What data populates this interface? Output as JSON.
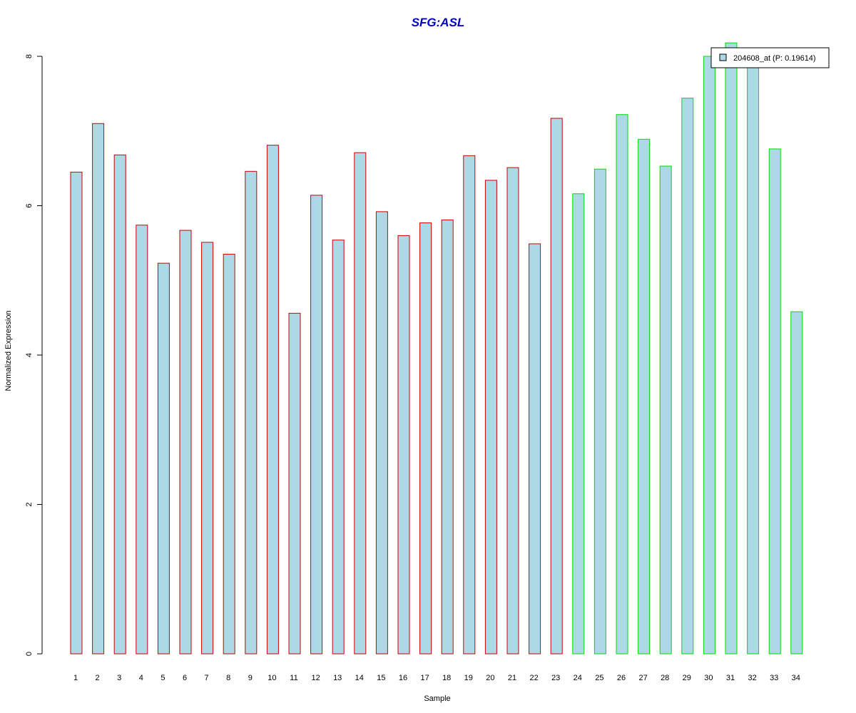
{
  "chart_data": {
    "type": "bar",
    "title": "SFG:ASL",
    "xlabel": "Sample",
    "ylabel": "Normalized Expression",
    "categories": [
      "1",
      "2",
      "3",
      "4",
      "5",
      "6",
      "7",
      "8",
      "9",
      "10",
      "11",
      "12",
      "13",
      "14",
      "15",
      "16",
      "17",
      "18",
      "19",
      "20",
      "21",
      "22",
      "23",
      "24",
      "25",
      "26",
      "27",
      "28",
      "29",
      "30",
      "31",
      "32",
      "33",
      "34"
    ],
    "series": [
      {
        "name": "204608_at (P: 0.19614)",
        "values": [
          6.45,
          7.1,
          6.68,
          5.74,
          5.23,
          5.67,
          5.51,
          5.35,
          6.46,
          6.81,
          4.56,
          6.14,
          5.54,
          6.71,
          5.92,
          5.6,
          5.77,
          5.81,
          6.67,
          6.34,
          6.51,
          5.49,
          7.17,
          6.16,
          6.49,
          7.22,
          6.89,
          6.53,
          7.44,
          8.0,
          8.18,
          7.85,
          6.76,
          4.58
        ]
      }
    ],
    "groups": [
      {
        "samples": "1-23",
        "border_color": "#cc0000"
      },
      {
        "samples": "24-34",
        "border_color": "#00dd00"
      }
    ],
    "bar_fill": "#add8e6",
    "title_color": "#0000cc",
    "ylim": [
      0,
      8
    ],
    "yticks": [
      "0",
      "2",
      "4",
      "6",
      "8"
    ],
    "grid": false,
    "legend_placement": "top-right"
  }
}
